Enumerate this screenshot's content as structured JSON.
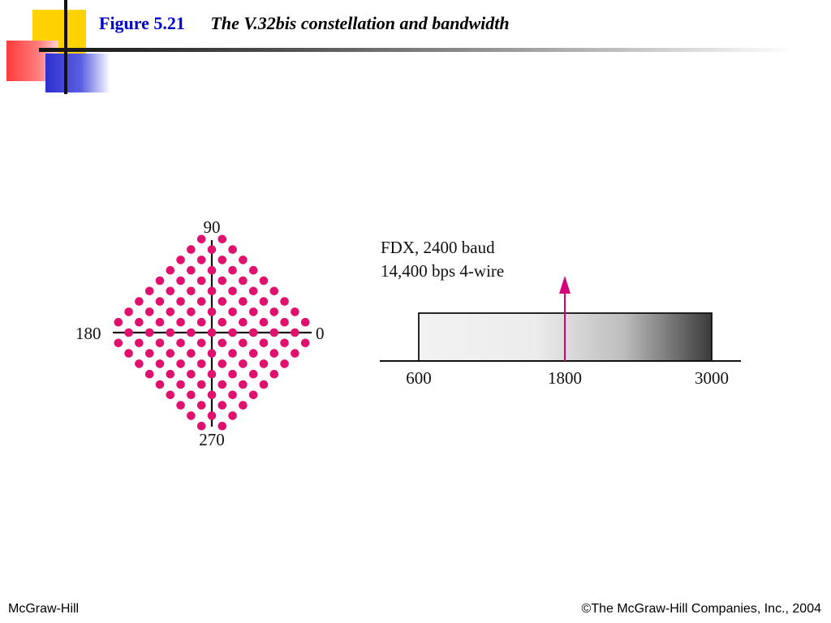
{
  "slide": {
    "figure_label": "Figure 5.21",
    "figure_title": "The V.32bis constellation and bandwidth"
  },
  "constellation": {
    "axis_labels": {
      "top": "90",
      "left": "180",
      "right": "0",
      "bottom": "270"
    },
    "point_color": "#e0106e"
  },
  "bandwidth": {
    "info_line1": "FDX, 2400 baud",
    "info_line2": "14,400 bps 4-wire",
    "ticks": [
      "600",
      "1800",
      "3000"
    ],
    "arrow_color": "#d4007a"
  },
  "footer": {
    "left": "McGraw-Hill",
    "right": "©The McGraw-Hill Companies, Inc., 2004"
  }
}
